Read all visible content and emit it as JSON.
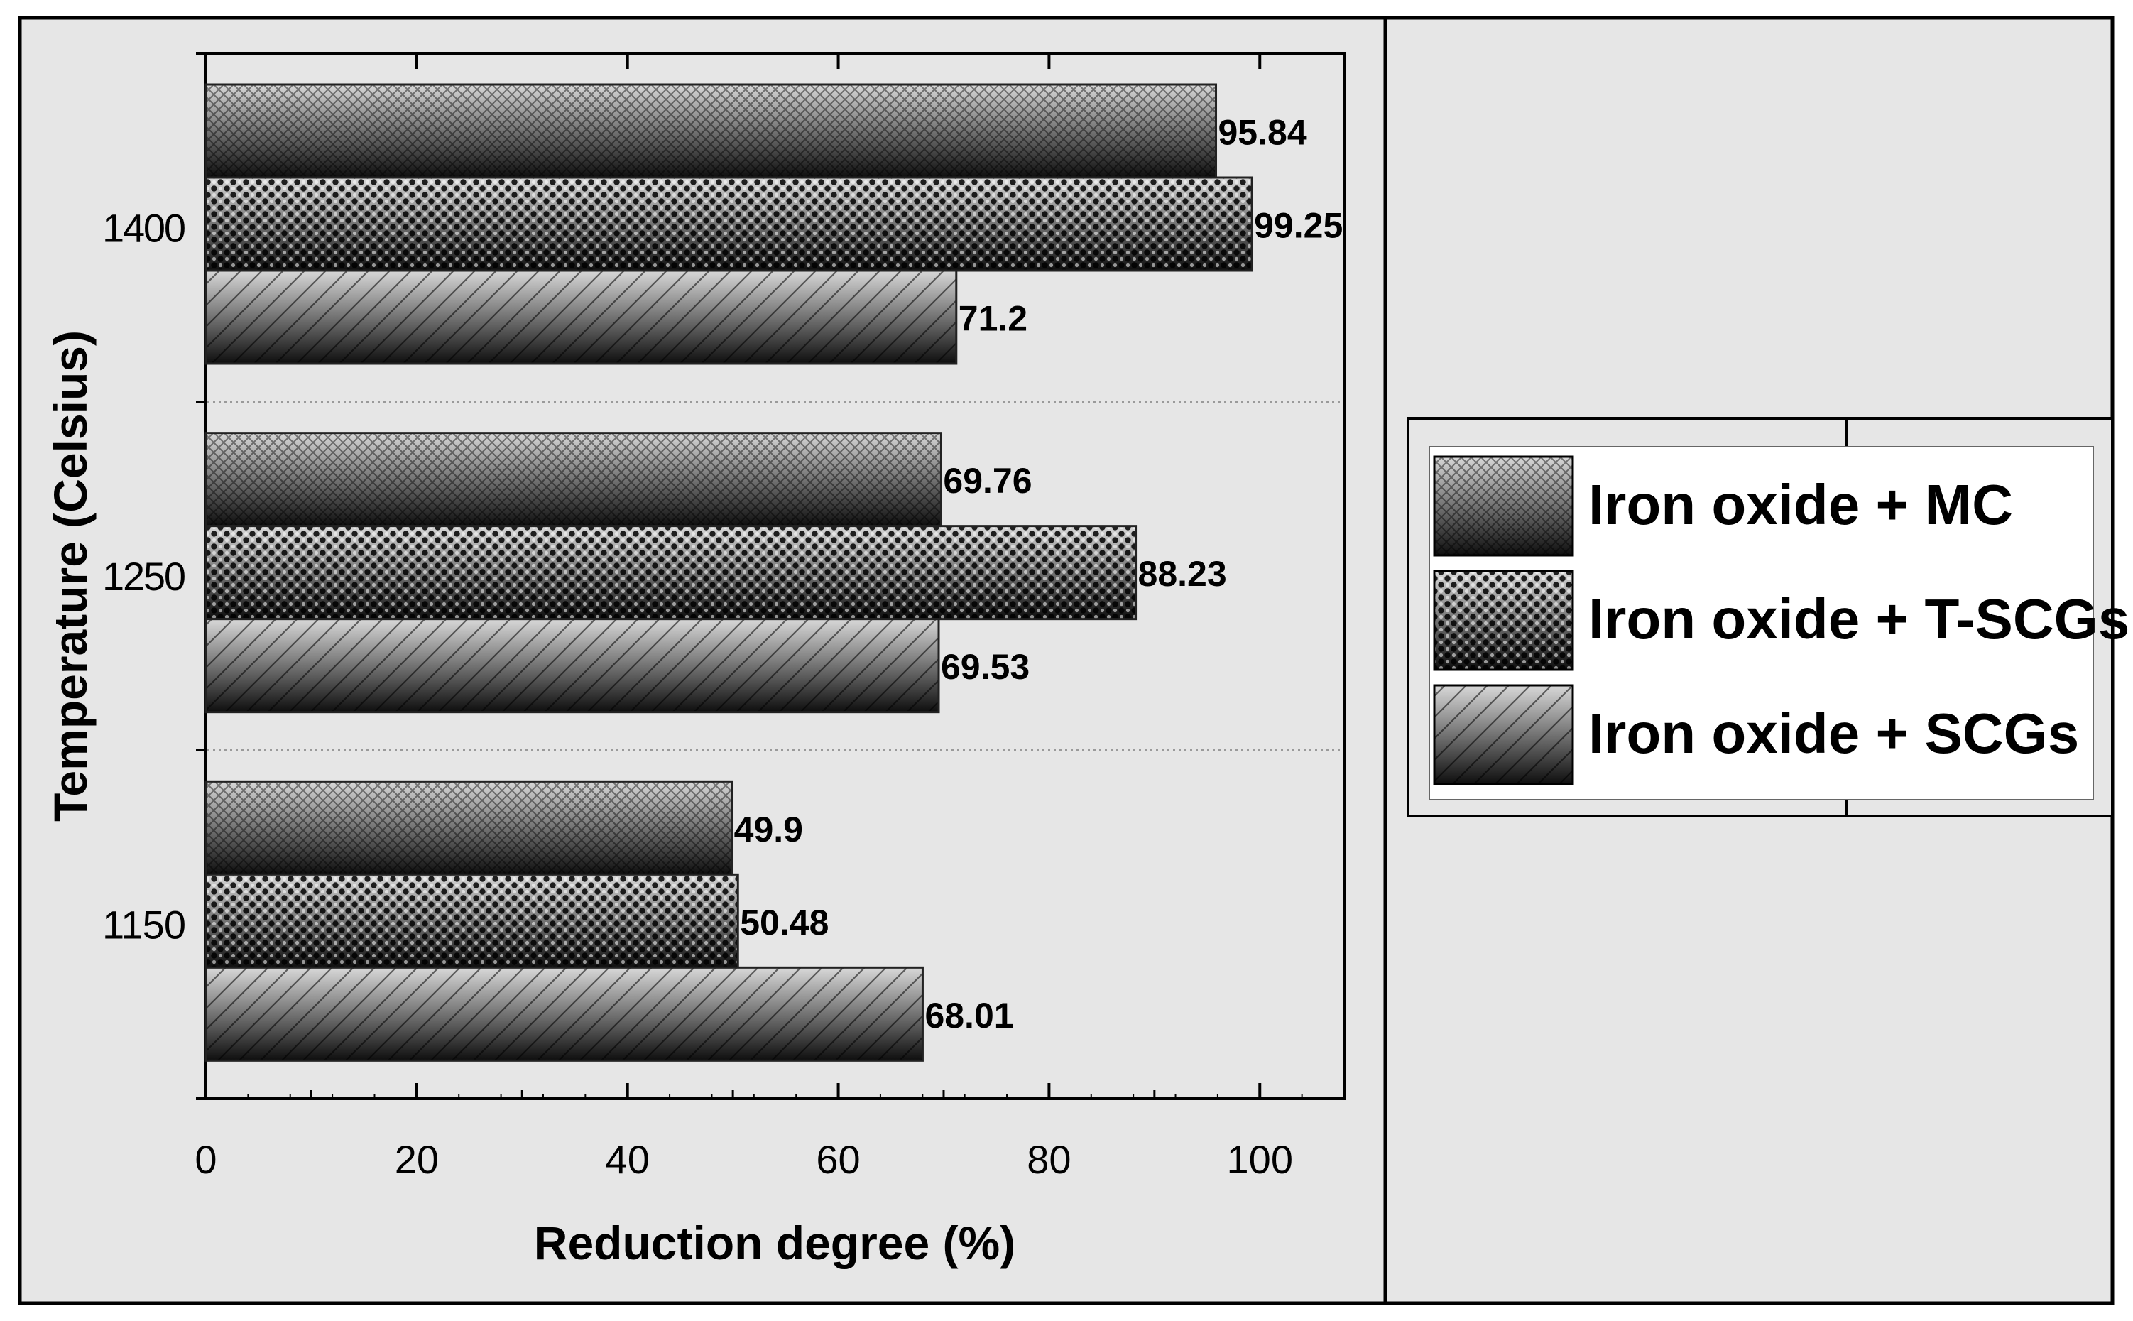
{
  "chart_data": {
    "type": "bar",
    "orientation": "horizontal",
    "categories": [
      "1150",
      "1250",
      "1400"
    ],
    "series": [
      {
        "name": "Iron oxide + MC",
        "values": [
          49.9,
          69.76,
          95.84
        ],
        "pattern": "crosshatch"
      },
      {
        "name": "Iron oxide + T-SCGs",
        "values": [
          50.48,
          88.23,
          99.25
        ],
        "pattern": "dots"
      },
      {
        "name": "Iron oxide + SCGs",
        "values": [
          68.01,
          69.53,
          71.2
        ],
        "pattern": "diagonal"
      }
    ],
    "data_labels": [
      [
        "49.9",
        "69.76",
        "95.84"
      ],
      [
        "50.48",
        "88.23",
        "99.25"
      ],
      [
        "68.01",
        "69.53",
        "71.2"
      ]
    ],
    "xlabel": "Reduction degree (%)",
    "ylabel": "Temperature (Celsius)",
    "xlim": [
      0,
      108
    ],
    "xticks": [
      "0",
      "20",
      "40",
      "60",
      "80",
      "100"
    ],
    "grid": "dotted horizontal separators",
    "legend_position": "right",
    "colors": {
      "panel": "#e6e6e6",
      "bar_dark": "#1a1a1a",
      "bar_light": "#cfcfcf",
      "frame": "#000000"
    }
  }
}
